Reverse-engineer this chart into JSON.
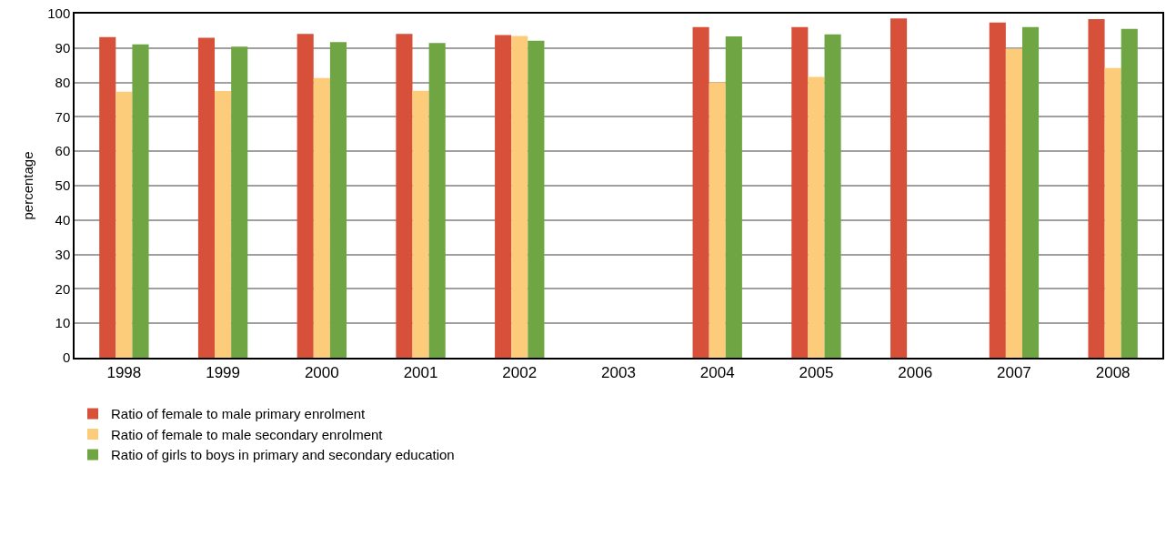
{
  "chart_data": {
    "type": "bar",
    "ylabel": "percentage",
    "categories": [
      "1998",
      "1999",
      "2000",
      "2001",
      "2002",
      "2003",
      "2004",
      "2005",
      "2006",
      "2007",
      "2008"
    ],
    "series": [
      {
        "name": "Ratio of female to male primary enrolment",
        "color": "#d6503a",
        "values": [
          93.2,
          93.0,
          94.1,
          94.1,
          93.8,
          null,
          96.1,
          96.1,
          98.6,
          97.4,
          98.4
        ]
      },
      {
        "name": "Ratio of female to male secondary enrolment",
        "color": "#fdcc7a",
        "values": [
          77.3,
          77.5,
          81.3,
          77.6,
          93.5,
          null,
          80.0,
          81.6,
          null,
          89.8,
          84.2
        ]
      },
      {
        "name": "Ratio of girls to boys in primary and secondary education",
        "color": "#70a544",
        "values": [
          91.1,
          90.4,
          91.7,
          91.5,
          92.1,
          null,
          93.4,
          94.0,
          null,
          96.1,
          95.6
        ]
      }
    ],
    "ylim": [
      0,
      100
    ],
    "yticks": [
      0,
      10,
      20,
      30,
      40,
      50,
      60,
      70,
      80,
      90,
      100
    ],
    "grid": "y",
    "legend": "bottom left"
  }
}
